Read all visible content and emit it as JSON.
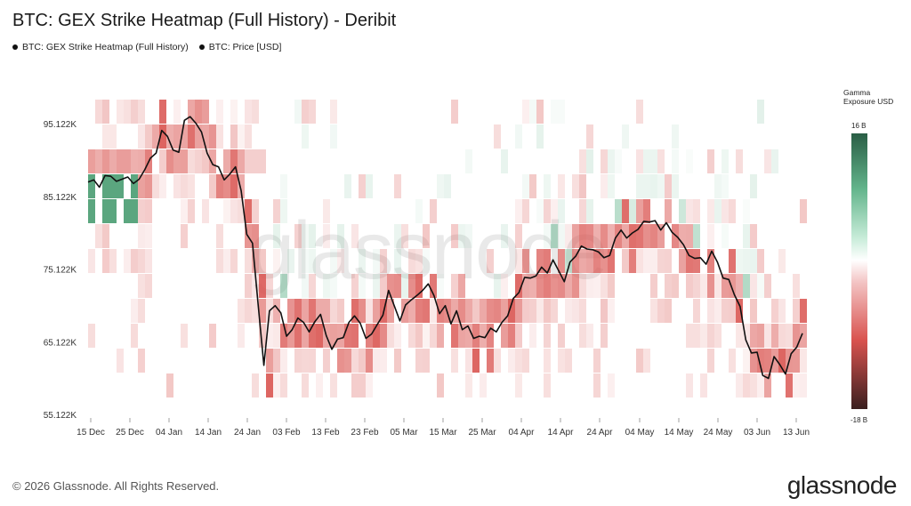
{
  "title": "BTC: GEX Strike Heatmap (Full History) - Deribit",
  "legend": {
    "series1": "BTC: GEX Strike Heatmap (Full History)",
    "series2": "BTC: Price [USD]"
  },
  "watermark": "glassnode",
  "footer": "© 2026 Glassnode. All Rights Reserved.",
  "brand": "glassnode",
  "colorbar": {
    "title": "Gamma Exposure USD",
    "max_label": "16 B",
    "min_label": "-18 B",
    "max": 16,
    "min": -18
  },
  "chart_data": {
    "type": "heatmap",
    "title": "BTC: GEX Strike Heatmap (Full History) - Deribit",
    "y_ticks": [
      "95.122K",
      "85.122K",
      "75.122K",
      "65.122K",
      "55.122K"
    ],
    "y_tick_values": [
      95122,
      85122,
      75122,
      65122,
      55122
    ],
    "x_ticks": [
      "15 Dec",
      "25 Dec",
      "04 Jan",
      "14 Jan",
      "24 Jan",
      "03 Feb",
      "13 Feb",
      "23 Feb",
      "05 Mar",
      "15 Mar",
      "25 Mar",
      "04 Apr",
      "14 Apr",
      "24 Apr",
      "04 May",
      "14 May",
      "24 May",
      "03 Jun",
      "13 Jun"
    ],
    "ylim": [
      55122,
      100000
    ],
    "strike_step": 3800,
    "price_series": {
      "name": "BTC: Price [USD]",
      "values": [
        87200,
        87500,
        86500,
        88100,
        88000,
        87300,
        87600,
        87900,
        87000,
        87600,
        88900,
        90500,
        91200,
        94300,
        93500,
        91600,
        91300,
        95700,
        96200,
        95300,
        94100,
        91200,
        89600,
        89300,
        87500,
        88300,
        89300,
        86000,
        80000,
        78800,
        70300,
        62000,
        69500,
        70200,
        69200,
        66000,
        66900,
        68500,
        67900,
        66600,
        68000,
        69000,
        66100,
        64200,
        65600,
        65800,
        67900,
        68800,
        67800,
        65700,
        66300,
        67600,
        68900,
        72300,
        70200,
        68100,
        70300,
        71000,
        71600,
        72300,
        73200,
        71600,
        69100,
        70200,
        67700,
        69500,
        66900,
        67400,
        65700,
        66000,
        65800,
        67100,
        66600,
        67900,
        68800,
        71200,
        72000,
        74100,
        74000,
        74300,
        75500,
        74700,
        76500,
        75000,
        73500,
        76200,
        77000,
        78400,
        78000,
        77900,
        77600,
        76800,
        77100,
        79500,
        80600,
        79500,
        80200,
        80700,
        81800,
        81700,
        81900,
        80600,
        81600,
        80300,
        79600,
        78600,
        77100,
        76700,
        76800,
        75900,
        77700,
        76200,
        74000,
        73800,
        71700,
        70100,
        65500,
        63700,
        63800,
        60600,
        60200,
        63200,
        62100,
        60800,
        63600,
        64500,
        66400
      ]
    },
    "gamma_range": [
      -18,
      16
    ]
  }
}
